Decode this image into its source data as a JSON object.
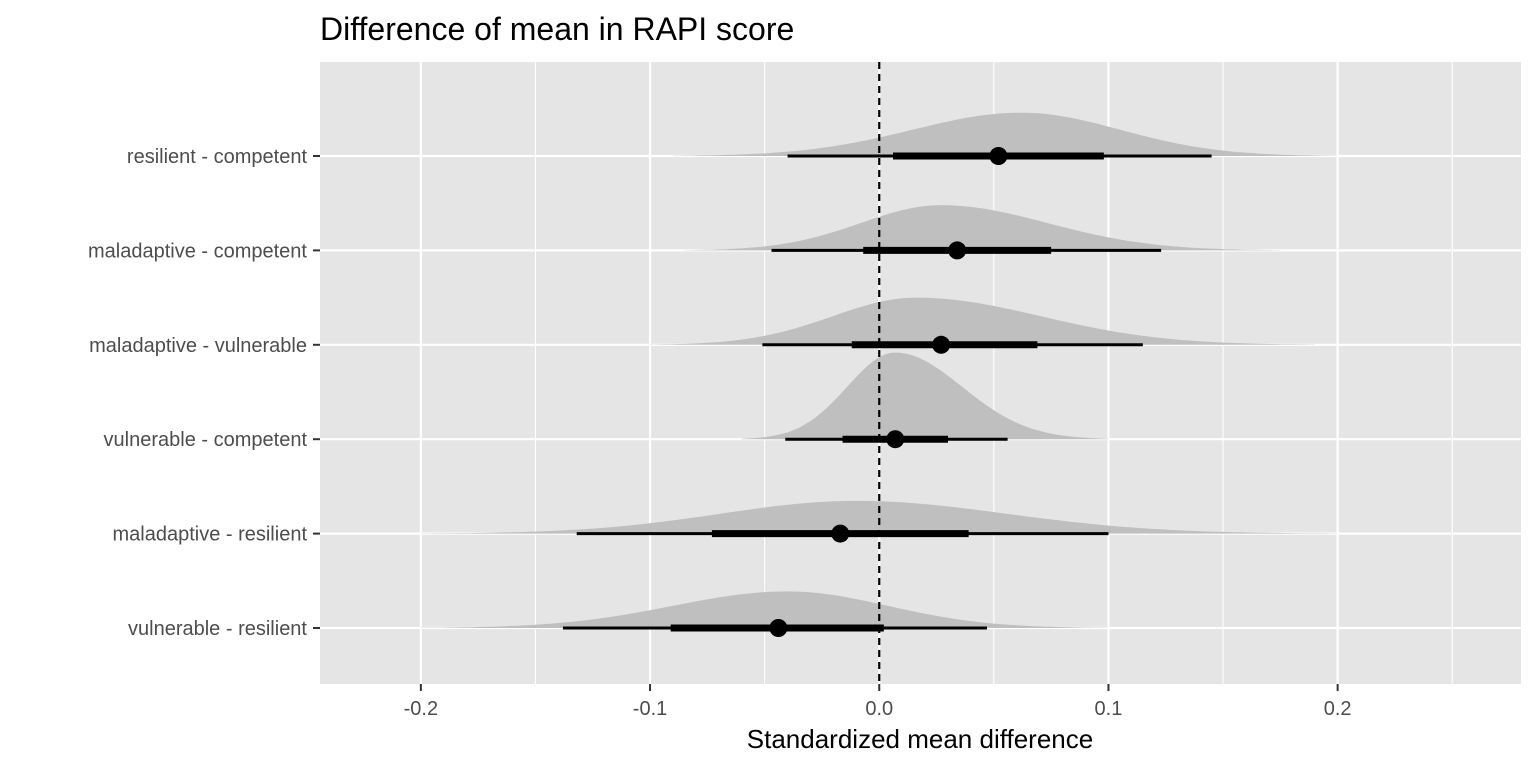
{
  "chart_data": {
    "type": "halfeye",
    "title": "Difference of mean in RAPI score",
    "xlabel": "Standardized mean difference",
    "ylabel": "",
    "xlim": [
      -0.244,
      0.28
    ],
    "x_ticks": [
      -0.2,
      -0.1,
      0.0,
      0.1,
      0.2
    ],
    "x_tick_labels": [
      "-0.2",
      "-0.1",
      "0.0",
      "0.1",
      "0.2"
    ],
    "reference_line": 0.0,
    "grid": true,
    "colors": {
      "panel": "#e5e5e5",
      "grid": "#ffffff",
      "density": "#bfbfbf",
      "interval": "#000000",
      "point": "#000000",
      "reference": "#000000"
    },
    "rows": [
      {
        "label": "resilient - competent",
        "point": 0.052,
        "ci66": [
          0.006,
          0.098
        ],
        "ci95": [
          -0.04,
          0.145
        ],
        "density_range": [
          -0.09,
          0.2
        ],
        "peak": 0.062,
        "height": 0.45
      },
      {
        "label": "maladaptive - competent",
        "point": 0.034,
        "ci66": [
          -0.007,
          0.075
        ],
        "ci95": [
          -0.047,
          0.123
        ],
        "density_range": [
          -0.085,
          0.175
        ],
        "peak": 0.027,
        "height": 0.47
      },
      {
        "label": "maladaptive - vulnerable",
        "point": 0.027,
        "ci66": [
          -0.012,
          0.069
        ],
        "ci95": [
          -0.051,
          0.115
        ],
        "density_range": [
          -0.1,
          0.19
        ],
        "peak": 0.016,
        "height": 0.49
      },
      {
        "label": "vulnerable - competent",
        "point": 0.007,
        "ci66": [
          -0.016,
          0.03
        ],
        "ci95": [
          -0.041,
          0.056
        ],
        "density_range": [
          -0.06,
          0.1
        ],
        "peak": 0.007,
        "height": 0.9
      },
      {
        "label": "maladaptive - resilient",
        "point": -0.017,
        "ci66": [
          -0.073,
          0.039
        ],
        "ci95": [
          -0.132,
          0.1
        ],
        "density_range": [
          -0.2,
          0.2
        ],
        "peak": -0.01,
        "height": 0.34
      },
      {
        "label": "vulnerable - resilient",
        "point": -0.044,
        "ci66": [
          -0.091,
          0.002
        ],
        "ci95": [
          -0.138,
          0.047
        ],
        "density_range": [
          -0.2,
          0.1
        ],
        "peak": -0.04,
        "height": 0.38
      }
    ]
  }
}
